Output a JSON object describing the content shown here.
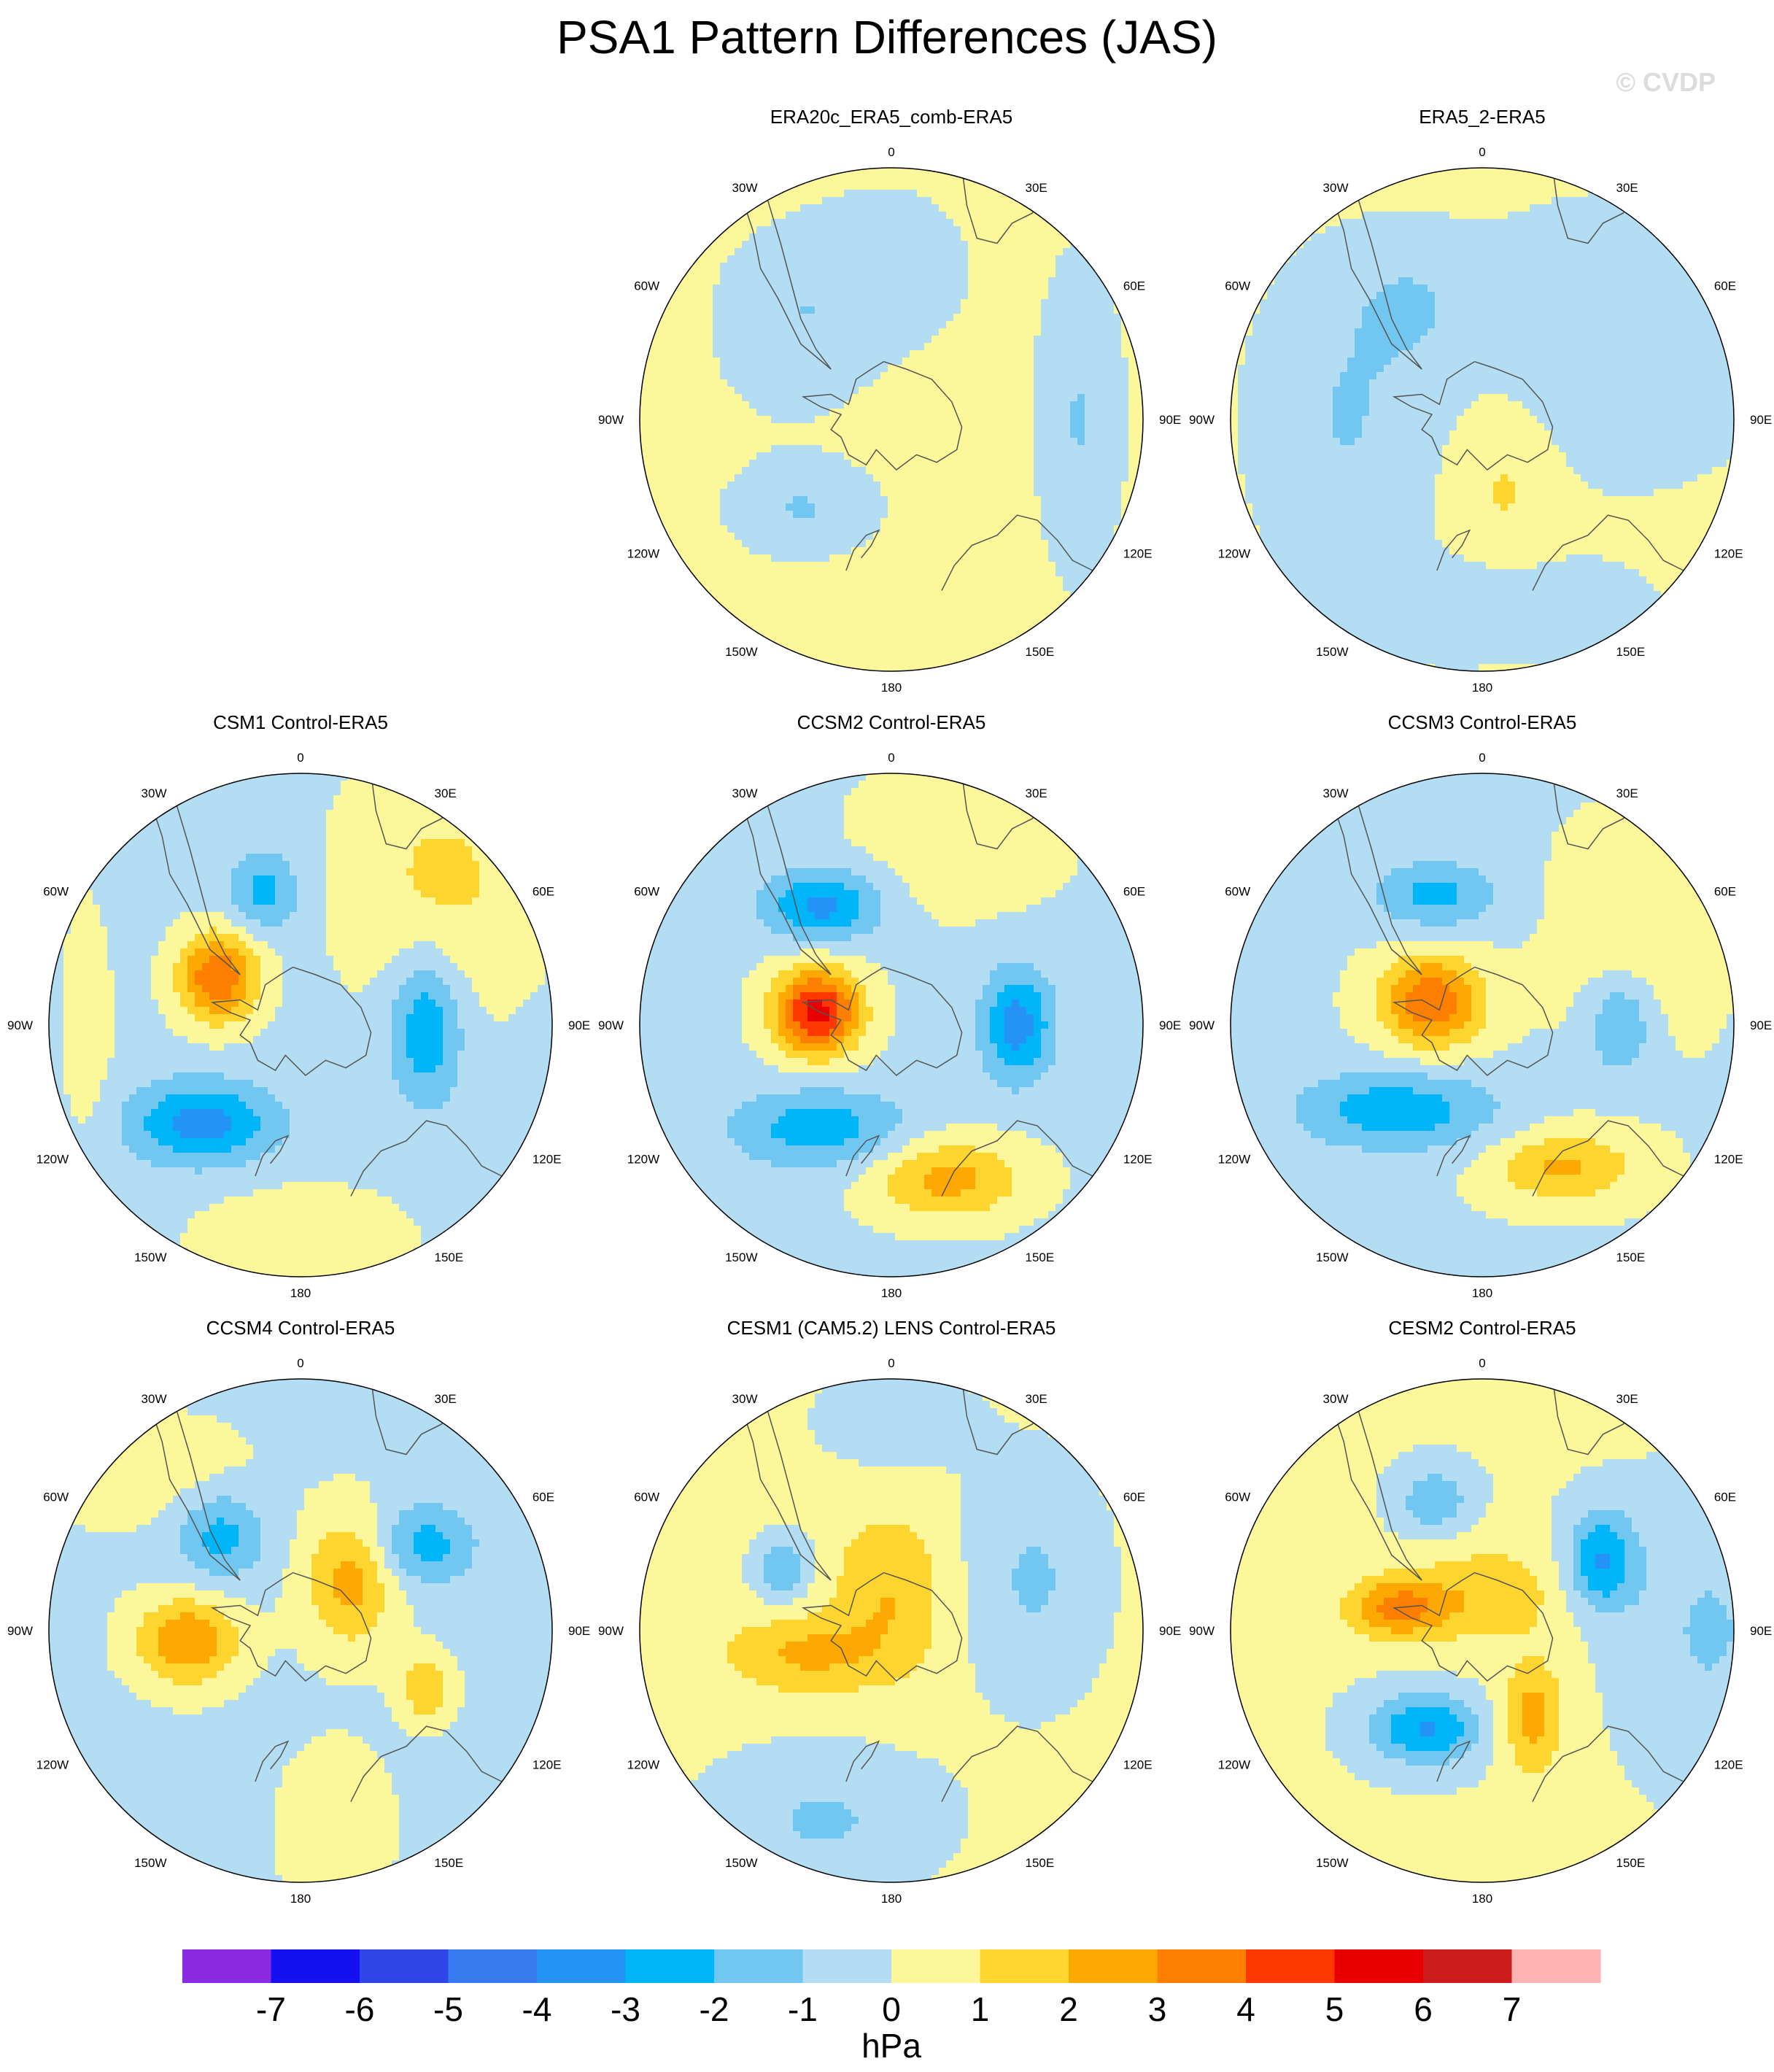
{
  "title": "PSA1 Pattern Differences (JAS)",
  "watermark": "© CVDP",
  "chart_data": {
    "type": "contour-map",
    "projection": "south-polar-stereographic",
    "variable": "PSA1 pattern difference",
    "units": "hPa",
    "colorbar": {
      "levels": [
        -7,
        -6,
        -5,
        -4,
        -3,
        -2,
        -1,
        0,
        1,
        2,
        3,
        4,
        5,
        6,
        7
      ],
      "colors": [
        "#8a2be2",
        "#1410f0",
        "#2f45e8",
        "#3779ee",
        "#2493f5",
        "#00b6f8",
        "#72c7f1",
        "#b3ddf2",
        "#fcf79a",
        "#fed52e",
        "#fea804",
        "#fe7e00",
        "#fe3800",
        "#e80000",
        "#cc1c1c",
        "#ffb3b3"
      ],
      "unit_label": "hPa"
    },
    "longitude_labels": [
      "0",
      "30E",
      "60E",
      "90E",
      "120E",
      "150E",
      "180",
      "150W",
      "120W",
      "90W",
      "60W",
      "30W"
    ],
    "panels": [
      {
        "title": "ERA20c_ERA5_comb-ERA5",
        "row": 1,
        "col": 2,
        "cells": [],
        "min": -1,
        "max": 1
      },
      {
        "title": "ERA5_2-ERA5",
        "row": 1,
        "col": 3,
        "cells": [],
        "min": -1,
        "max": 1
      },
      {
        "title": "CSM1 Control-ERA5",
        "row": 2,
        "col": 1,
        "cells": [],
        "min": -3,
        "max": 4
      },
      {
        "title": "CCSM2 Control-ERA5",
        "row": 2,
        "col": 2,
        "cells": [],
        "min": -3,
        "max": 5
      },
      {
        "title": "CCSM3 Control-ERA5",
        "row": 2,
        "col": 3,
        "cells": [],
        "min": -3,
        "max": 4
      },
      {
        "title": "CCSM4 Control-ERA5",
        "row": 3,
        "col": 1,
        "cells": [],
        "min": -2,
        "max": 3
      },
      {
        "title": "CESM1 (CAM5.2) LENS Control-ERA5",
        "row": 3,
        "col": 2,
        "cells": [],
        "min": -2,
        "max": 2
      },
      {
        "title": "CESM2 Control-ERA5",
        "row": 3,
        "col": 3,
        "cells": [],
        "min": -3,
        "max": 3
      }
    ]
  }
}
